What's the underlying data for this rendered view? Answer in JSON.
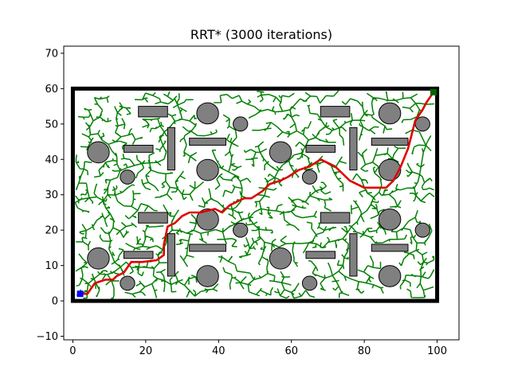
{
  "chart_data": {
    "type": "scatter",
    "title": "RRT* (3000 iterations)",
    "xlabel": "",
    "ylabel": "",
    "xlim": [
      -2.5,
      106
    ],
    "ylim": [
      -11,
      72
    ],
    "x_ticks": [
      0,
      20,
      40,
      60,
      80,
      100
    ],
    "y_ticks": [
      -10,
      0,
      10,
      20,
      30,
      40,
      50,
      60,
      70
    ],
    "grid": false,
    "legend": "none",
    "colors": {
      "boundary": "#000000",
      "obstacle_fill": "#808080",
      "obstacle_edge": "#000000",
      "tree": "#008000",
      "path": "#e00000",
      "start": "#0000ff",
      "goal": "#006400"
    },
    "boundary": {
      "x_min": 0,
      "y_min": 0,
      "x_max": 100,
      "y_max": 60
    },
    "start": {
      "x": 2,
      "y": 2
    },
    "goal": {
      "x": 99,
      "y": 59
    },
    "obstacles": {
      "circles": [
        {
          "cx": 7,
          "cy": 42,
          "r": 3
        },
        {
          "cx": 37,
          "cy": 53,
          "r": 3
        },
        {
          "cx": 87,
          "cy": 53,
          "r": 3
        },
        {
          "cx": 46,
          "cy": 50,
          "r": 2
        },
        {
          "cx": 96,
          "cy": 50,
          "r": 2
        },
        {
          "cx": 57,
          "cy": 42,
          "r": 3
        },
        {
          "cx": 15,
          "cy": 35,
          "r": 2
        },
        {
          "cx": 37,
          "cy": 37,
          "r": 3
        },
        {
          "cx": 65,
          "cy": 35,
          "r": 2
        },
        {
          "cx": 87,
          "cy": 37,
          "r": 3
        },
        {
          "cx": 37,
          "cy": 23,
          "r": 3
        },
        {
          "cx": 87,
          "cy": 23,
          "r": 3
        },
        {
          "cx": 46,
          "cy": 20,
          "r": 2
        },
        {
          "cx": 96,
          "cy": 20,
          "r": 2
        },
        {
          "cx": 7,
          "cy": 12,
          "r": 3
        },
        {
          "cx": 57,
          "cy": 12,
          "r": 3
        },
        {
          "cx": 15,
          "cy": 5,
          "r": 2
        },
        {
          "cx": 65,
          "cy": 5,
          "r": 2
        },
        {
          "cx": 37,
          "cy": 7,
          "r": 3
        },
        {
          "cx": 87,
          "cy": 7,
          "r": 3
        }
      ],
      "rects": [
        {
          "x": 18,
          "y": 52,
          "w": 8,
          "h": 3
        },
        {
          "x": 68,
          "y": 52,
          "w": 8,
          "h": 3
        },
        {
          "x": 14,
          "y": 42,
          "w": 8,
          "h": 2
        },
        {
          "x": 64,
          "y": 42,
          "w": 8,
          "h": 2
        },
        {
          "x": 26,
          "y": 37,
          "w": 2,
          "h": 12
        },
        {
          "x": 76,
          "y": 37,
          "w": 2,
          "h": 12
        },
        {
          "x": 32,
          "y": 44,
          "w": 10,
          "h": 2
        },
        {
          "x": 82,
          "y": 44,
          "w": 10,
          "h": 2
        },
        {
          "x": 18,
          "y": 22,
          "w": 8,
          "h": 3
        },
        {
          "x": 68,
          "y": 22,
          "w": 8,
          "h": 3
        },
        {
          "x": 26,
          "y": 7,
          "w": 2,
          "h": 12
        },
        {
          "x": 76,
          "y": 7,
          "w": 2,
          "h": 12
        },
        {
          "x": 14,
          "y": 12,
          "w": 8,
          "h": 2
        },
        {
          "x": 64,
          "y": 12,
          "w": 8,
          "h": 2
        },
        {
          "x": 32,
          "y": 14,
          "w": 10,
          "h": 2
        },
        {
          "x": 82,
          "y": 14,
          "w": 10,
          "h": 2
        }
      ]
    },
    "path": [
      [
        2,
        2
      ],
      [
        4,
        2
      ],
      [
        6,
        5
      ],
      [
        9,
        6
      ],
      [
        11,
        6
      ],
      [
        12,
        7
      ],
      [
        14,
        8
      ],
      [
        16,
        11
      ],
      [
        19,
        11
      ],
      [
        23,
        11.5
      ],
      [
        25,
        13
      ],
      [
        25,
        16
      ],
      [
        26,
        21
      ],
      [
        28,
        22
      ],
      [
        30,
        24
      ],
      [
        32,
        25
      ],
      [
        35,
        25
      ],
      [
        39,
        26
      ],
      [
        41,
        25
      ],
      [
        43,
        27
      ],
      [
        45,
        28
      ],
      [
        47,
        29
      ],
      [
        49,
        29
      ],
      [
        52,
        31
      ],
      [
        54,
        33
      ],
      [
        57,
        34
      ],
      [
        59,
        35
      ],
      [
        62,
        37
      ],
      [
        65,
        38
      ],
      [
        68,
        40
      ],
      [
        70,
        39
      ],
      [
        72,
        38
      ],
      [
        74,
        36
      ],
      [
        76,
        34
      ],
      [
        78,
        33
      ],
      [
        80,
        32
      ],
      [
        83,
        32
      ],
      [
        86,
        32
      ],
      [
        88,
        34
      ],
      [
        90,
        38
      ],
      [
        92,
        43
      ],
      [
        93,
        47
      ],
      [
        94,
        51
      ],
      [
        96,
        54
      ],
      [
        97,
        56
      ],
      [
        99,
        59
      ]
    ],
    "tree_iterations": 3000
  }
}
